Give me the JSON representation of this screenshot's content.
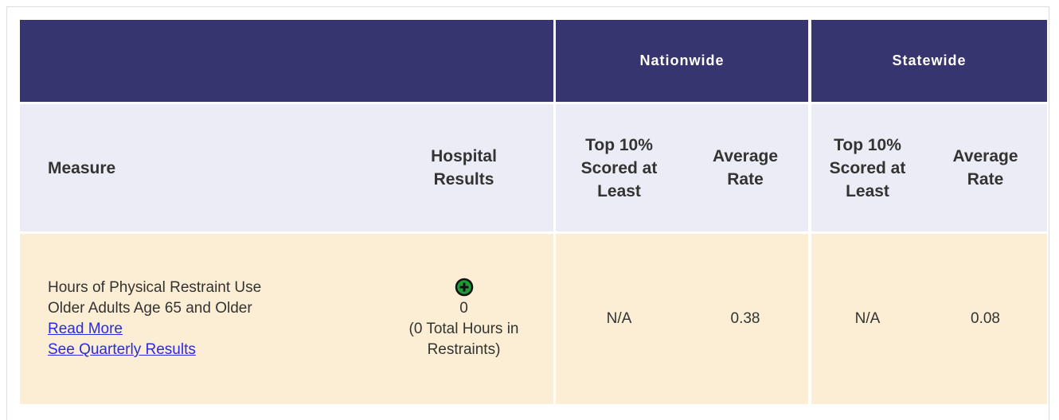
{
  "header": {
    "groups": [
      "Nationwide",
      "Statewide"
    ]
  },
  "columns": [
    "Measure",
    "Hospital Results",
    "Top 10% Scored at Least",
    "Average Rate",
    "Top 10% Scored at Least",
    "Average Rate"
  ],
  "row": {
    "measure": [
      "Hours of Physical Restraint Use",
      "Older Adults Age 65 and Older"
    ],
    "links": [
      "Read More",
      "See Quarterly Results"
    ],
    "hospital_result": [
      "0",
      "(0 Total Hours in Restraints)"
    ],
    "nationwide_top": "N/A",
    "nationwide_average": 0.38,
    "statewide_top": "N/A",
    "statewide_average": 0.08
  }
}
